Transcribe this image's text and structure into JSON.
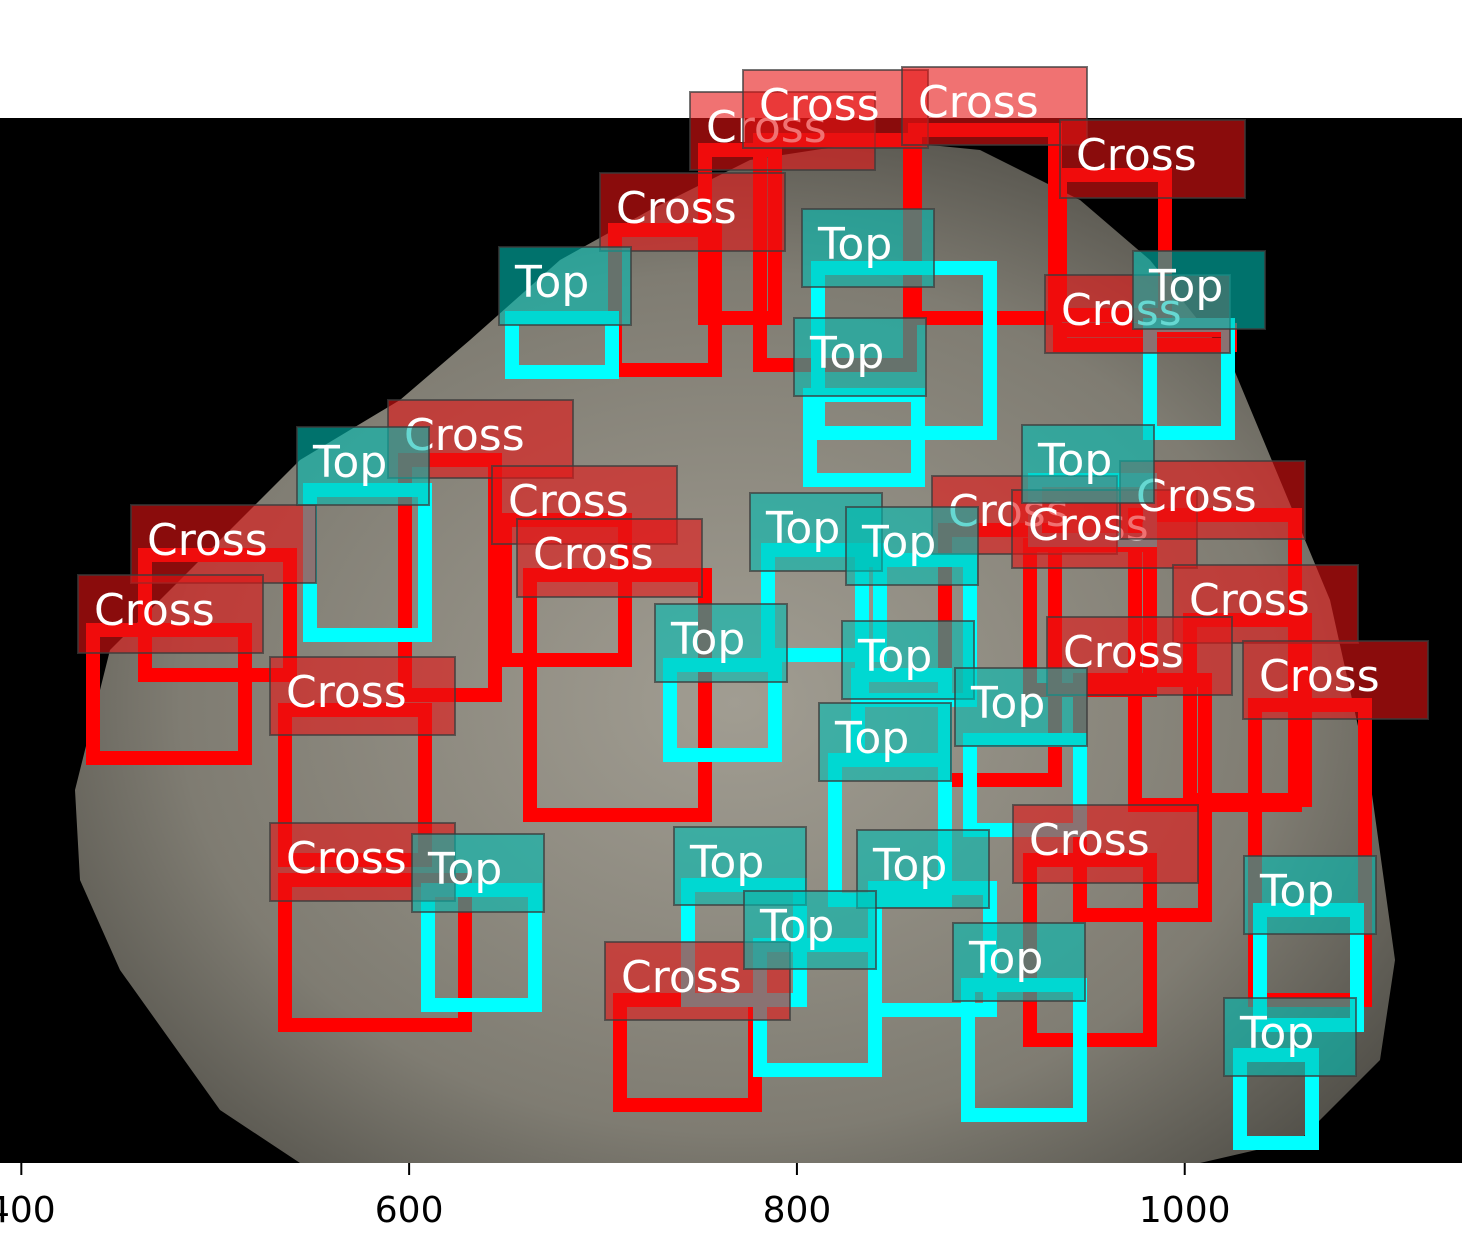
{
  "x_axis": {
    "xlim": [
      389,
      1143
    ],
    "xticks": [
      400,
      600,
      800,
      1000
    ]
  },
  "annotations": [
    "Cross",
    "Cross",
    "Cross",
    "Cross",
    "Cross",
    "Cross",
    "Cross",
    "Cross",
    "Cross",
    "Cross",
    "Cross",
    "Cross",
    "Cross",
    "Cross",
    "Cross",
    "Cross",
    "Cross",
    "Cross",
    "Cross",
    "Cross",
    "Cross",
    "Top",
    "Top",
    "Top",
    "Top",
    "Top",
    "Top",
    "Top",
    "Top",
    "Top",
    "Top",
    "Top",
    "Top",
    "Top",
    "Top",
    "Top",
    "Top",
    "Top",
    "Top",
    "Top"
  ]
}
